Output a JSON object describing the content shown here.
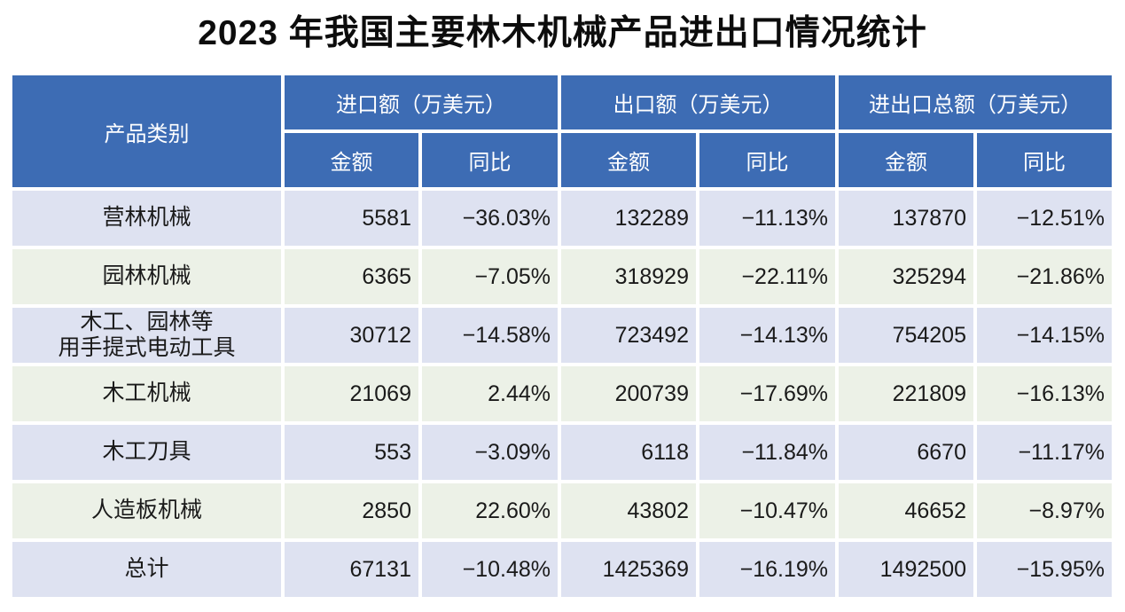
{
  "title": "2023 年我国主要林木机械产品进出口情况统计",
  "colors": {
    "header_bg": "#3d6cb4",
    "header_text": "#ffffff",
    "row_odd_bg": "#dee2f1",
    "row_even_bg": "#ecf1e7",
    "text": "#1a1a1a"
  },
  "chart_data": {
    "type": "table",
    "title": "2023 年我国主要林木机械产品进出口情况统计",
    "header": {
      "product": "产品类别",
      "groups": [
        "进口额（万美元）",
        "出口额（万美元）",
        "进出口总额（万美元）"
      ],
      "amount_label": "金额",
      "yoy_label": "同比"
    },
    "rows": [
      {
        "product": "营林机械",
        "import_amount": "5581",
        "import_yoy": "−36.03%",
        "export_amount": "132289",
        "export_yoy": "−11.13%",
        "total_amount": "137870",
        "total_yoy": "−12.51%"
      },
      {
        "product": "园林机械",
        "import_amount": "6365",
        "import_yoy": "−7.05%",
        "export_amount": "318929",
        "export_yoy": "−22.11%",
        "total_amount": "325294",
        "total_yoy": "−21.86%"
      },
      {
        "product": "木工、园林等\n用手提式电动工具",
        "import_amount": "30712",
        "import_yoy": "−14.58%",
        "export_amount": "723492",
        "export_yoy": "−14.13%",
        "total_amount": "754205",
        "total_yoy": "−14.15%"
      },
      {
        "product": "木工机械",
        "import_amount": "21069",
        "import_yoy": "2.44%",
        "export_amount": "200739",
        "export_yoy": "−17.69%",
        "total_amount": "221809",
        "total_yoy": "−16.13%"
      },
      {
        "product": "木工刀具",
        "import_amount": "553",
        "import_yoy": "−3.09%",
        "export_amount": "6118",
        "export_yoy": "−11.84%",
        "total_amount": "6670",
        "total_yoy": "−11.17%"
      },
      {
        "product": "人造板机械",
        "import_amount": "2850",
        "import_yoy": "22.60%",
        "export_amount": "43802",
        "export_yoy": "−10.47%",
        "total_amount": "46652",
        "total_yoy": "−8.97%"
      },
      {
        "product": "总计",
        "import_amount": "67131",
        "import_yoy": "−10.48%",
        "export_amount": "1425369",
        "export_yoy": "−16.19%",
        "total_amount": "1492500",
        "total_yoy": "−15.95%"
      }
    ]
  }
}
